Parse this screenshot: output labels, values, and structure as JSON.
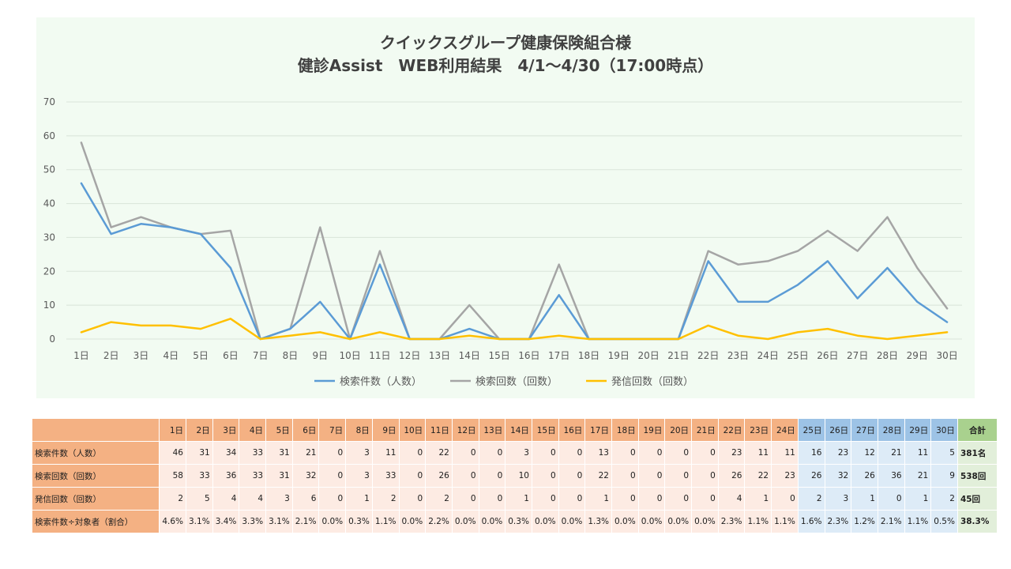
{
  "chart_data": {
    "type": "line",
    "title": "クイックスグループ健康保険組合様",
    "subtitle": "健診Assist　WEB利用結果　4/1～4/30（17:00時点）",
    "categories": [
      "1日",
      "2日",
      "3日",
      "4日",
      "5日",
      "6日",
      "7日",
      "8日",
      "9日",
      "10日",
      "11日",
      "12日",
      "13日",
      "14日",
      "15日",
      "16日",
      "17日",
      "18日",
      "19日",
      "20日",
      "21日",
      "22日",
      "23日",
      "24日",
      "25日",
      "26日",
      "27日",
      "28日",
      "29日",
      "30日"
    ],
    "ylim": [
      0,
      70
    ],
    "yticks": [
      0,
      10,
      20,
      30,
      40,
      50,
      60,
      70
    ],
    "grid": true,
    "legend_position": "bottom",
    "series": [
      {
        "name": "検索件数（人数）",
        "color": "#5b9bd5",
        "values": [
          46,
          31,
          34,
          33,
          31,
          21,
          0,
          3,
          11,
          0,
          22,
          0,
          0,
          3,
          0,
          0,
          13,
          0,
          0,
          0,
          0,
          23,
          11,
          11,
          16,
          23,
          12,
          21,
          11,
          5
        ]
      },
      {
        "name": "検索回数（回数）",
        "color": "#a5a5a5",
        "values": [
          58,
          33,
          36,
          33,
          31,
          32,
          0,
          3,
          33,
          0,
          26,
          0,
          0,
          10,
          0,
          0,
          22,
          0,
          0,
          0,
          0,
          26,
          22,
          23,
          26,
          32,
          26,
          36,
          21,
          9
        ]
      },
      {
        "name": "発信回数（回数）",
        "color": "#ffc000",
        "values": [
          2,
          5,
          4,
          4,
          3,
          6,
          0,
          1,
          2,
          0,
          2,
          0,
          0,
          1,
          0,
          0,
          1,
          0,
          0,
          0,
          0,
          4,
          1,
          0,
          2,
          3,
          1,
          0,
          1,
          2
        ]
      }
    ]
  },
  "table": {
    "total_header": "合計",
    "rows": [
      {
        "label": "検索件数（人数）",
        "values": [
          "46",
          "31",
          "34",
          "33",
          "31",
          "21",
          "0",
          "3",
          "11",
          "0",
          "22",
          "0",
          "0",
          "3",
          "0",
          "0",
          "13",
          "0",
          "0",
          "0",
          "0",
          "23",
          "11",
          "11",
          "16",
          "23",
          "12",
          "21",
          "11",
          "5"
        ],
        "total": "381名"
      },
      {
        "label": "検索回数（回数）",
        "values": [
          "58",
          "33",
          "36",
          "33",
          "31",
          "32",
          "0",
          "3",
          "33",
          "0",
          "26",
          "0",
          "0",
          "10",
          "0",
          "0",
          "22",
          "0",
          "0",
          "0",
          "0",
          "26",
          "22",
          "23",
          "26",
          "32",
          "26",
          "36",
          "21",
          "9"
        ],
        "total": "538回"
      },
      {
        "label": "発信回数（回数）",
        "values": [
          "2",
          "5",
          "4",
          "4",
          "3",
          "6",
          "0",
          "1",
          "2",
          "0",
          "2",
          "0",
          "0",
          "1",
          "0",
          "0",
          "1",
          "0",
          "0",
          "0",
          "0",
          "4",
          "1",
          "0",
          "2",
          "3",
          "1",
          "0",
          "1",
          "2"
        ],
        "total": "45回"
      },
      {
        "label": "検索件数÷対象者（割合）",
        "values": [
          "4.6%",
          "3.1%",
          "3.4%",
          "3.3%",
          "3.1%",
          "2.1%",
          "0.0%",
          "0.3%",
          "1.1%",
          "0.0%",
          "2.2%",
          "0.0%",
          "0.0%",
          "0.3%",
          "0.0%",
          "0.0%",
          "1.3%",
          "0.0%",
          "0.0%",
          "0.0%",
          "0.0%",
          "2.3%",
          "1.1%",
          "1.1%",
          "1.6%",
          "2.3%",
          "1.2%",
          "2.1%",
          "1.1%",
          "0.5%"
        ],
        "total": "38.3%"
      }
    ]
  },
  "colors": {
    "panel_bg": "#f2fbf2",
    "header_orange": "#f4b183",
    "header_blue": "#9dc3e6",
    "header_green": "#a9d18e",
    "cell_orange": "#fdebe3",
    "cell_blue": "#ddebf7",
    "cell_green": "#e2efda"
  }
}
